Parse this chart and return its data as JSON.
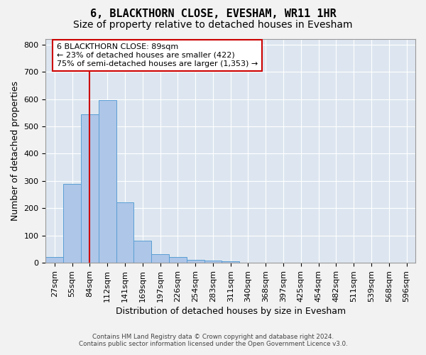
{
  "title": "6, BLACKTHORN CLOSE, EVESHAM, WR11 1HR",
  "subtitle": "Size of property relative to detached houses in Evesham",
  "xlabel": "Distribution of detached houses by size in Evesham",
  "ylabel": "Number of detached properties",
  "footer_line1": "Contains HM Land Registry data © Crown copyright and database right 2024.",
  "footer_line2": "Contains public sector information licensed under the Open Government Licence v3.0.",
  "bin_labels": [
    "27sqm",
    "55sqm",
    "84sqm",
    "112sqm",
    "141sqm",
    "169sqm",
    "197sqm",
    "226sqm",
    "254sqm",
    "283sqm",
    "311sqm",
    "340sqm",
    "368sqm",
    "397sqm",
    "425sqm",
    "454sqm",
    "482sqm",
    "511sqm",
    "539sqm",
    "568sqm",
    "596sqm"
  ],
  "bar_values": [
    22,
    290,
    545,
    595,
    222,
    80,
    33,
    22,
    12,
    8,
    5,
    0,
    0,
    0,
    0,
    0,
    0,
    0,
    0,
    0,
    0
  ],
  "bar_color": "#aec6e8",
  "bar_edge_color": "#5a9fd4",
  "property_line_x": 2.0,
  "property_line_color": "#cc0000",
  "ylim": [
    0,
    820
  ],
  "yticks": [
    0,
    100,
    200,
    300,
    400,
    500,
    600,
    700,
    800
  ],
  "annotation_line1": "6 BLACKTHORN CLOSE: 89sqm",
  "annotation_line2": "← 23% of detached houses are smaller (422)",
  "annotation_line3": "75% of semi-detached houses are larger (1,353) →",
  "annotation_box_edgecolor": "#cc0000",
  "bg_color": "#dde6f0",
  "grid_color": "#ffffff",
  "fig_bg_color": "#f2f2f2",
  "title_fontsize": 11,
  "subtitle_fontsize": 10,
  "tick_fontsize": 8,
  "ylabel_fontsize": 9,
  "xlabel_fontsize": 9
}
